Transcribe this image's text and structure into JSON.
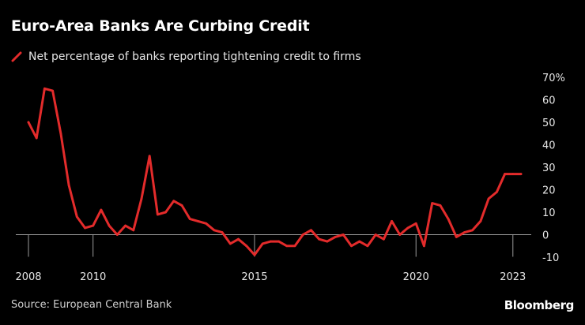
{
  "chart_data": {
    "type": "line",
    "title": "Euro-Area Banks Are Curbing Credit",
    "legend": [
      "Net percentage of banks reporting tightening credit to firms"
    ],
    "legend_placement": "top-left",
    "y_axis_side": "right",
    "ylim": [
      -10,
      70
    ],
    "yticks": [
      {
        "value": 70,
        "label": "70%"
      },
      {
        "value": 60,
        "label": "60"
      },
      {
        "value": 50,
        "label": "50"
      },
      {
        "value": 40,
        "label": "40"
      },
      {
        "value": 30,
        "label": "30"
      },
      {
        "value": 20,
        "label": "20"
      },
      {
        "value": 10,
        "label": "10"
      },
      {
        "value": 0,
        "label": "0"
      },
      {
        "value": -10,
        "label": "-10"
      }
    ],
    "xlim": [
      2008.0,
      2023.25
    ],
    "xticks": [
      {
        "value": 2008.0,
        "label": "2008"
      },
      {
        "value": 2010.0,
        "label": "2010"
      },
      {
        "value": 2015.0,
        "label": "2015"
      },
      {
        "value": 2020.0,
        "label": "2020"
      },
      {
        "value": 2023.0,
        "label": "2023"
      }
    ],
    "grid": false,
    "series": [
      {
        "name": "Net percentage of banks reporting tightening credit to firms",
        "color": "#e32b2b",
        "x": [
          2008.0,
          2008.25,
          2008.5,
          2008.75,
          2009.0,
          2009.25,
          2009.5,
          2009.75,
          2010.0,
          2010.25,
          2010.5,
          2010.75,
          2011.0,
          2011.25,
          2011.5,
          2011.75,
          2012.0,
          2012.25,
          2012.5,
          2012.75,
          2013.0,
          2013.25,
          2013.5,
          2013.75,
          2014.0,
          2014.25,
          2014.5,
          2014.75,
          2015.0,
          2015.25,
          2015.5,
          2015.75,
          2016.0,
          2016.25,
          2016.5,
          2016.75,
          2017.0,
          2017.25,
          2017.5,
          2017.75,
          2018.0,
          2018.25,
          2018.5,
          2018.75,
          2019.0,
          2019.25,
          2019.5,
          2019.75,
          2020.0,
          2020.25,
          2020.5,
          2020.75,
          2021.0,
          2021.25,
          2021.5,
          2021.75,
          2022.0,
          2022.25,
          2022.5,
          2022.75,
          2023.0,
          2023.25
        ],
        "values": [
          50,
          43,
          65,
          64,
          45,
          22,
          8,
          3,
          4,
          11,
          4,
          0,
          4,
          2,
          16,
          35,
          9,
          10,
          15,
          13,
          7,
          6,
          5,
          2,
          1,
          -4,
          -2,
          -5,
          -9,
          -4,
          -3,
          -3,
          -5,
          -5,
          0,
          2,
          -2,
          -3,
          -1,
          0,
          -5,
          -3,
          -5,
          0,
          -2,
          6,
          0,
          3,
          5,
          -5,
          14,
          13,
          7,
          -1,
          1,
          2,
          6,
          16,
          19,
          27,
          27,
          27
        ]
      }
    ]
  },
  "source": "Source: European Central Bank",
  "brand": "Bloomberg"
}
